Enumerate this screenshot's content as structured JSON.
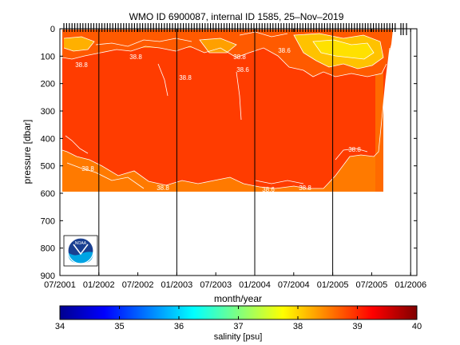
{
  "chart_data": [
    {
      "type": "heatmap",
      "title": "WMO ID 6900087, internal ID 1585, 25–Nov–2019",
      "xlabel": "month/year",
      "ylabel": "pressure [dbar]",
      "x_ticks": [
        "07/2001",
        "01/2002",
        "07/2002",
        "01/2003",
        "07/2003",
        "01/2004",
        "07/2004",
        "01/2005",
        "07/2005",
        "01/2006"
      ],
      "y_ticks": [
        "0",
        "100",
        "200",
        "300",
        "400",
        "500",
        "600",
        "700",
        "800",
        "900"
      ],
      "ylim": [
        900,
        0
      ],
      "grid": false,
      "year_lines": [
        "01/2002",
        "01/2003",
        "01/2004",
        "01/2005",
        "01/2006"
      ],
      "contour_labels": [
        "38.8",
        "38.8",
        "38.8",
        "38.6",
        "38.6",
        "38.8",
        "38.8",
        "38.6",
        "38.8",
        "38.8",
        "38.8"
      ],
      "colors": {
        "deep_low": "#ff7a00",
        "core": "#ff3c00",
        "surface_high": "#ff5a00",
        "fresh_patch": "#ffd400"
      },
      "logo_label": "NOAA"
    },
    {
      "type": "colorbar",
      "label": "salinity [psu]",
      "range": [
        34,
        40
      ],
      "ticks": [
        "34",
        "35",
        "36",
        "37",
        "38",
        "39",
        "40"
      ],
      "colormap": "jet"
    }
  ]
}
